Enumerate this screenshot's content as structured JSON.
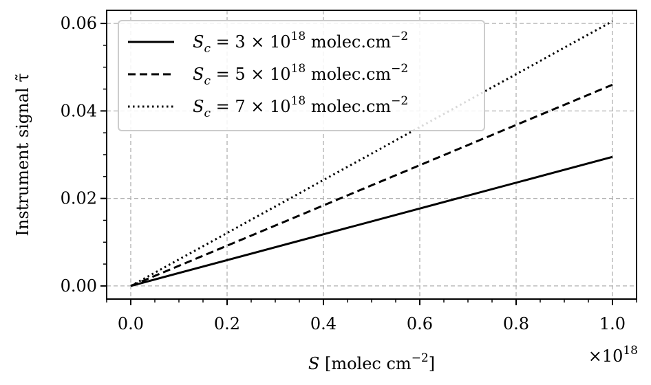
{
  "chart_data": {
    "type": "line",
    "title": "",
    "xlabel": "S [molec cm^-2]",
    "xlabel_parts": {
      "var": "S",
      "unit_open": " [molec cm",
      "unit_exp": "−2",
      "unit_close": "]"
    },
    "ylabel": "Instrument signal τ̃",
    "x_scale_label": {
      "base": "×10",
      "exp": "18"
    },
    "xlim": [
      -0.05,
      1.05
    ],
    "ylim": [
      -0.003,
      0.063
    ],
    "x_ticks": [
      0.0,
      0.2,
      0.4,
      0.6,
      0.8,
      1.0
    ],
    "x_tick_labels": [
      "0.0",
      "0.2",
      "0.4",
      "0.6",
      "0.8",
      "1.0"
    ],
    "y_ticks": [
      0.0,
      0.02,
      0.04,
      0.06
    ],
    "y_tick_labels": [
      "0.00",
      "0.02",
      "0.04",
      "0.06"
    ],
    "x_minor_ticks": [
      -0.05,
      0.05,
      0.1,
      0.15,
      0.25,
      0.3,
      0.35,
      0.45,
      0.5,
      0.55,
      0.65,
      0.7,
      0.75,
      0.85,
      0.9,
      0.95,
      1.05
    ],
    "y_minor_ticks": [
      0.005,
      0.01,
      0.015,
      0.025,
      0.03,
      0.035,
      0.045,
      0.05,
      0.055
    ],
    "grid": true,
    "legend_position": "top-left",
    "series": [
      {
        "name": "Sc = 3 × 10^18 molec.cm^-2",
        "label_parts": {
          "coef": "3"
        },
        "dash": "solid",
        "x": [
          0.0,
          1.0
        ],
        "y": [
          0.0,
          0.0295
        ]
      },
      {
        "name": "Sc = 5 × 10^18 molec.cm^-2",
        "label_parts": {
          "coef": "5"
        },
        "dash": "dashed",
        "x": [
          0.0,
          1.0
        ],
        "y": [
          0.0,
          0.046
        ]
      },
      {
        "name": "Sc = 7 × 10^18 molec.cm^-2",
        "label_parts": {
          "coef": "7"
        },
        "dash": "dotted",
        "x": [
          0.0,
          1.0
        ],
        "y": [
          0.0,
          0.0605
        ]
      }
    ],
    "legend_text": {
      "var": "S",
      "sub": "c",
      "eq": " = ",
      "times": " × 10",
      "exp": "18",
      "unit": " molec.cm",
      "unit_exp": "−2"
    },
    "colors": {
      "line": "#000000",
      "grid": "#b0b0b0",
      "legend_border": "#cccccc"
    }
  }
}
